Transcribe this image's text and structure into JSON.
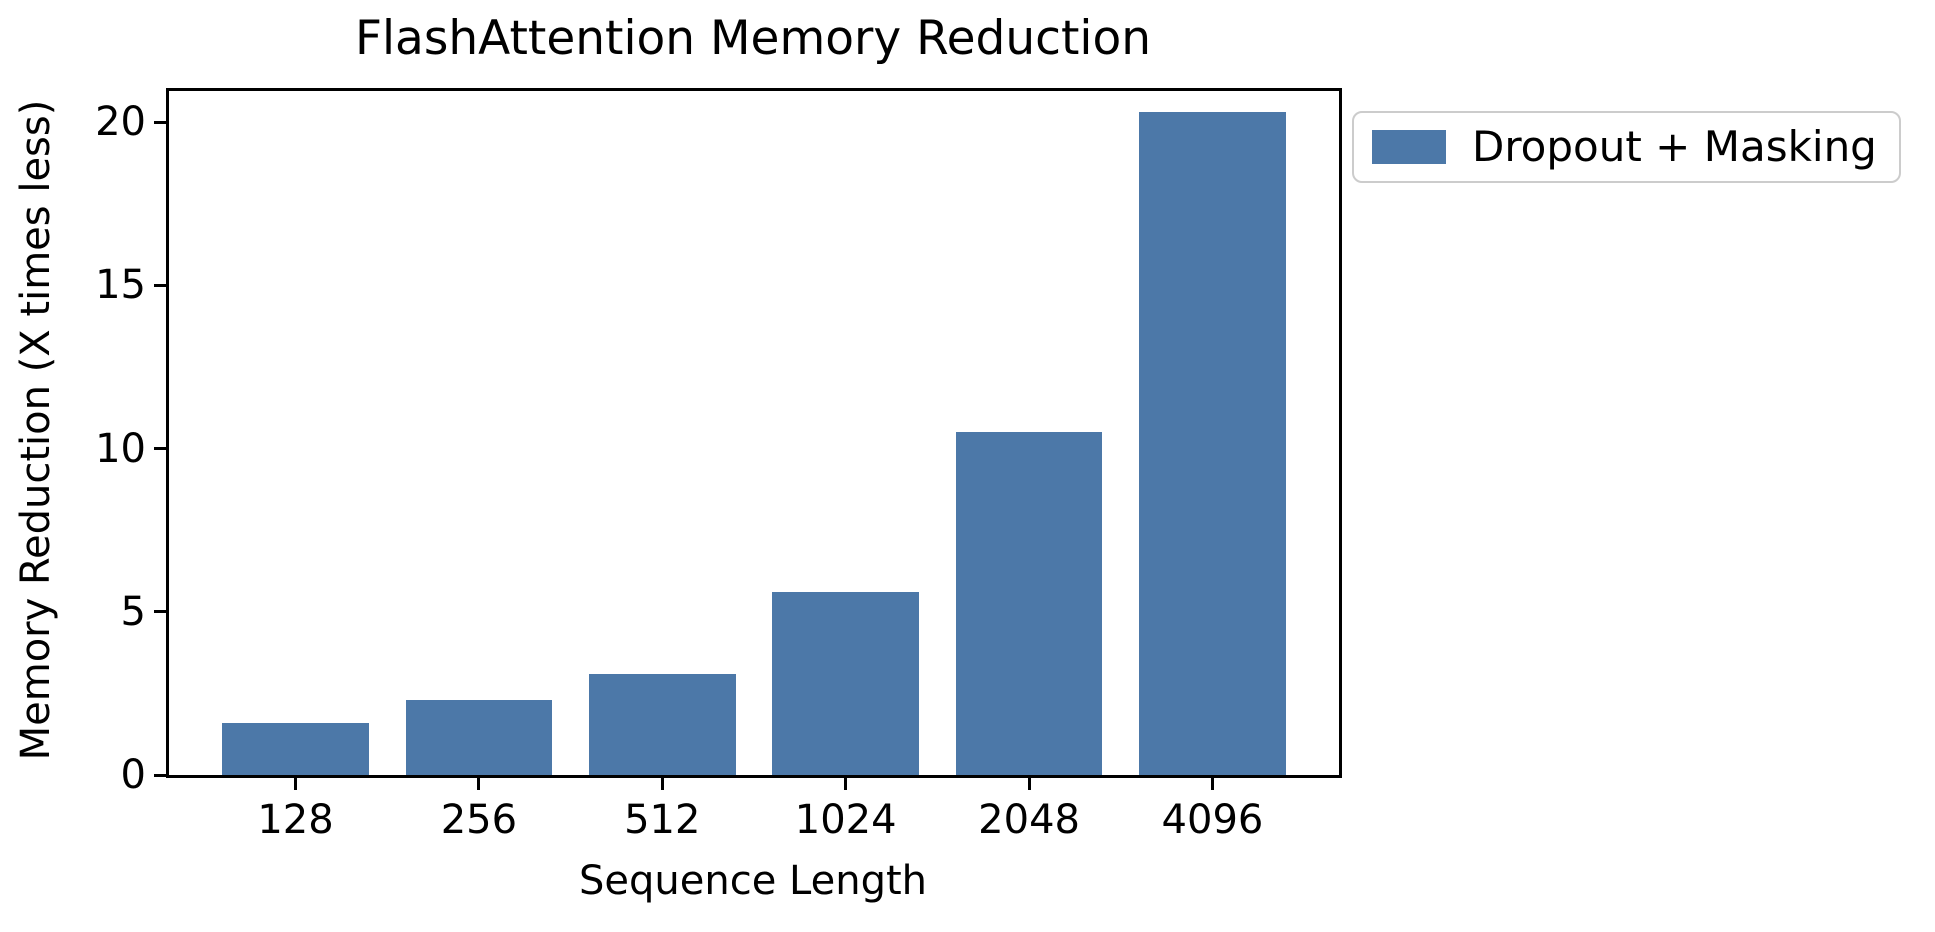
{
  "chart_data": {
    "type": "bar",
    "title": "FlashAttention Memory Reduction",
    "xlabel": "Sequence Length",
    "ylabel": "Memory Reduction (X times less)",
    "categories": [
      "128",
      "256",
      "512",
      "1024",
      "2048",
      "4096"
    ],
    "series": [
      {
        "name": "Dropout + Masking",
        "values": [
          1.6,
          2.3,
          3.1,
          5.6,
          10.5,
          20.3
        ],
        "color": "#4C78A8"
      }
    ],
    "yticks": [
      0,
      5,
      10,
      15,
      20
    ],
    "ylim": [
      0,
      20.95
    ],
    "xlim_slots": [
      -0.69,
      5.69
    ],
    "bar_width_ratio": 0.8,
    "grid": false,
    "legend": {
      "label": "Dropout + Masking",
      "swatch_color": "#4C78A8",
      "position": "outside-upper-right"
    }
  }
}
